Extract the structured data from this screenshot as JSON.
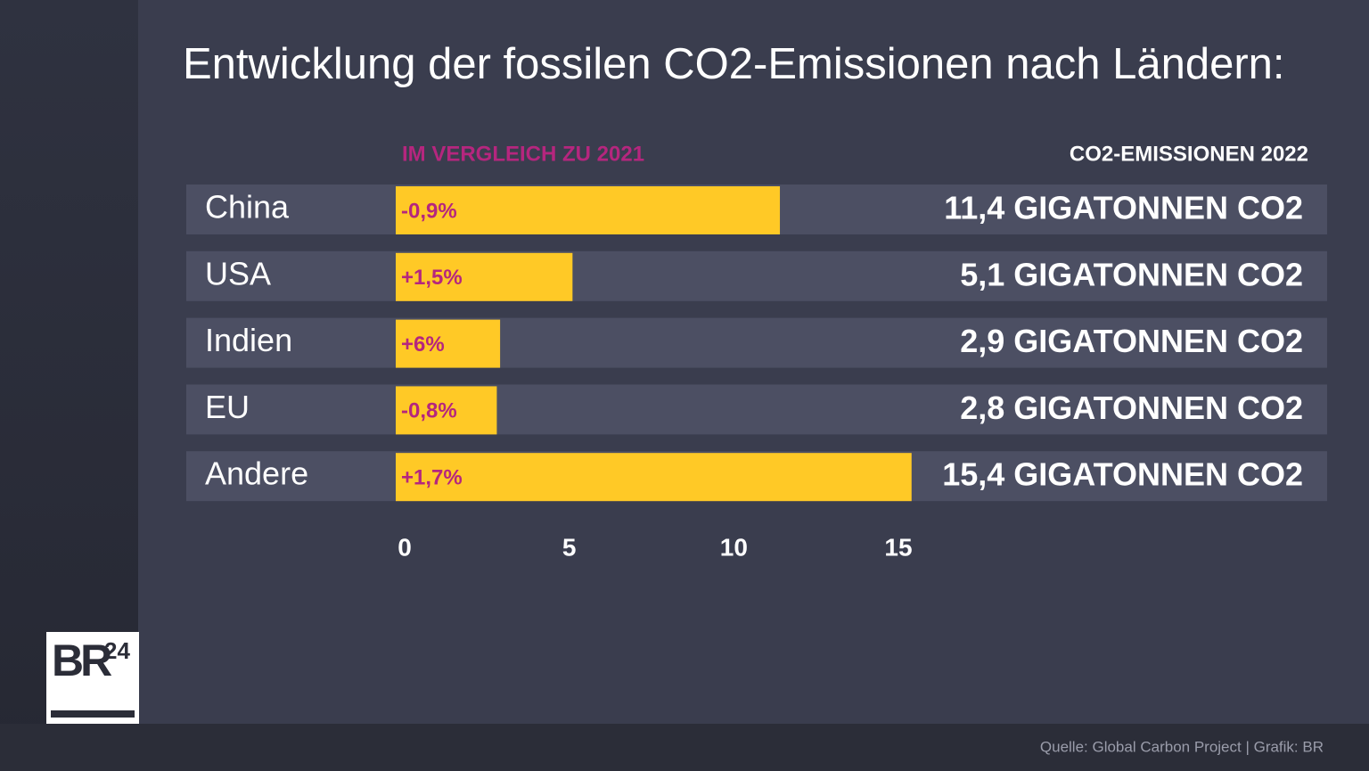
{
  "chart_data": {
    "type": "hbar",
    "title": "Entwicklung der fossilen CO2-Emissionen nach Ländern:",
    "change_header": "IM VERGLEICH ZU 2021",
    "value_header": "CO2-EMISSIONEN 2022",
    "categories": [
      "China",
      "USA",
      "Indien",
      "EU",
      "Andere"
    ],
    "values": [
      11.4,
      5.1,
      2.9,
      2.8,
      15.4
    ],
    "value_labels": [
      "11,4 GIGATONNEN CO2",
      "5,1 GIGATONNEN CO2",
      "2,9 GIGATONNEN CO2",
      "2,8 GIGATONNEN CO2",
      "15,4 GIGATONNEN CO2"
    ],
    "change_labels": [
      "-0,9%",
      "+1,5%",
      "+6%",
      "-0,8%",
      "+1,7%"
    ],
    "color": "#ffc926",
    "xlim": [
      0,
      15
    ],
    "xticks": [
      0,
      5,
      10,
      15
    ],
    "source": "Quelle: Global Carbon Project | Grafik: BR"
  },
  "logo": {
    "text": "BR",
    "superscript": "24"
  }
}
